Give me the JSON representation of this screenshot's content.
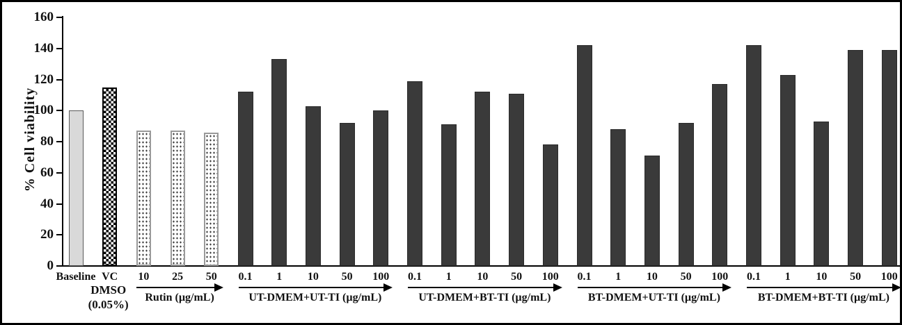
{
  "figure": {
    "background": "#ffffff",
    "frame_color": "#000000"
  },
  "chart_data": {
    "type": "bar",
    "title": "",
    "ylabel": "% Cell viability",
    "xlabel": "",
    "ylim": [
      0,
      160
    ],
    "yticks": [
      0,
      20,
      40,
      60,
      80,
      100,
      120,
      140,
      160
    ],
    "grid": false,
    "legend": "none",
    "colors": {
      "dark_bar": "#3a3a3a",
      "light_gray_bar": "#d9d9d9",
      "axis": "#000000"
    },
    "groups": [
      {
        "label": "",
        "sublabel_lines": [],
        "arrow": false,
        "bars": [
          {
            "x": "Baseline",
            "value": 100,
            "pattern": "solid-light-gray"
          }
        ]
      },
      {
        "label": "",
        "sublabel_lines": [
          "DMSO",
          "(0.05%)"
        ],
        "arrow": false,
        "bars": [
          {
            "x": "VC",
            "value": 115,
            "pattern": "checkerboard"
          }
        ]
      },
      {
        "label": "Rutin (µg/mL)",
        "sublabel_lines": [],
        "arrow": true,
        "bars": [
          {
            "x": "10",
            "value": 87,
            "pattern": "dotted"
          },
          {
            "x": "25",
            "value": 87,
            "pattern": "dotted"
          },
          {
            "x": "50",
            "value": 86,
            "pattern": "dotted"
          }
        ]
      },
      {
        "label": "UT-DMEM+UT-TI  (µg/mL)",
        "sublabel_lines": [],
        "arrow": true,
        "bars": [
          {
            "x": "0.1",
            "value": 112,
            "pattern": "solid-dark"
          },
          {
            "x": "1",
            "value": 133,
            "pattern": "solid-dark"
          },
          {
            "x": "10",
            "value": 103,
            "pattern": "solid-dark"
          },
          {
            "x": "50",
            "value": 92,
            "pattern": "solid-dark"
          },
          {
            "x": "100",
            "value": 100,
            "pattern": "solid-dark"
          }
        ]
      },
      {
        "label": "UT-DMEM+BT-TI  (µg/mL)",
        "sublabel_lines": [],
        "arrow": true,
        "bars": [
          {
            "x": "0.1",
            "value": 119,
            "pattern": "solid-dark"
          },
          {
            "x": "1",
            "value": 91,
            "pattern": "solid-dark"
          },
          {
            "x": "10",
            "value": 112,
            "pattern": "solid-dark"
          },
          {
            "x": "50",
            "value": 111,
            "pattern": "solid-dark"
          },
          {
            "x": "100",
            "value": 78,
            "pattern": "solid-dark"
          }
        ]
      },
      {
        "label": "BT-DMEM+UT-TI  (µg/mL)",
        "sublabel_lines": [],
        "arrow": true,
        "bars": [
          {
            "x": "0.1",
            "value": 142,
            "pattern": "solid-dark"
          },
          {
            "x": "1",
            "value": 88,
            "pattern": "solid-dark"
          },
          {
            "x": "10",
            "value": 71,
            "pattern": "solid-dark"
          },
          {
            "x": "50",
            "value": 92,
            "pattern": "solid-dark"
          },
          {
            "x": "100",
            "value": 117,
            "pattern": "solid-dark"
          }
        ]
      },
      {
        "label": "BT-DMEM+BT-TI  (µg/mL)",
        "sublabel_lines": [],
        "arrow": true,
        "bars": [
          {
            "x": "0.1",
            "value": 142,
            "pattern": "solid-dark"
          },
          {
            "x": "1",
            "value": 123,
            "pattern": "solid-dark"
          },
          {
            "x": "10",
            "value": 93,
            "pattern": "solid-dark"
          },
          {
            "x": "50",
            "value": 139,
            "pattern": "solid-dark"
          },
          {
            "x": "100",
            "value": 139,
            "pattern": "solid-dark"
          }
        ]
      }
    ]
  }
}
